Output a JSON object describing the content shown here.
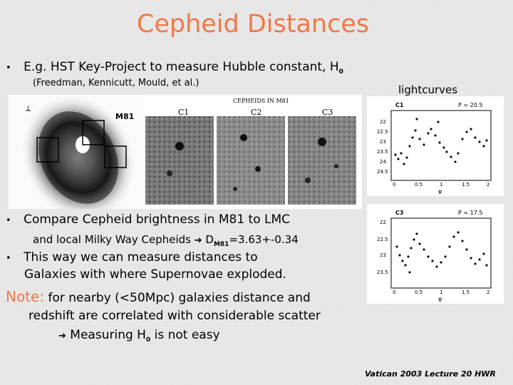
{
  "slide": {
    "title": "Cepheid Distances",
    "bullet1": {
      "marker": "•",
      "text": "E.g. HST Key-Project to measure Hubble constant, H",
      "sub": "0",
      "credit": "(Freedman, Kennicutt, Mould, et al.)"
    },
    "lightcurves_label": "lightcurves",
    "figure": {
      "galaxy_label": "M81",
      "header": "CEPHEIDS IN M81",
      "stamps": [
        "C1",
        "C2",
        "C3"
      ]
    },
    "lightcurve_c1": {
      "label": "C1",
      "period": "P = 20.5",
      "y_ticks": [
        "22",
        "22.5",
        "23",
        "23.5",
        "24",
        "24.5"
      ],
      "x_ticks": [
        "0",
        "0.5",
        "1",
        "1.5",
        "2"
      ],
      "x_label": "φ"
    },
    "lightcurve_c3": {
      "label": "C3",
      "period": "P = 17.5",
      "y_ticks": [
        "22",
        "22.5",
        "23",
        "23.5"
      ],
      "x_ticks": [
        "0",
        "0.5",
        "1",
        "1.5",
        "2"
      ],
      "x_label": "φ"
    },
    "bullet2": {
      "marker": "•",
      "line1": "Compare Cepheid brightness in M81 to LMC",
      "line2_a": "and local Milky Way Cepheids ",
      "arrow": "",
      "line2_b": " D",
      "sub": "M81",
      "line2_c": "=3.63+-0.34"
    },
    "bullet3": {
      "marker": "•",
      "line1": "This way we can measure distances to",
      "line2": "Galaxies with where Supernovae exploded."
    },
    "note": {
      "label": "Note:",
      "line1": " for nearby (<50Mpc) galaxies distance and",
      "line2": "redshift are correlated with considerable scatter",
      "arrow": "",
      "line3": " Measuring H",
      "sub": "0",
      "line3_end": " is not easy"
    },
    "footer": "Vatican 2003 Lecture 20 HWR"
  }
}
